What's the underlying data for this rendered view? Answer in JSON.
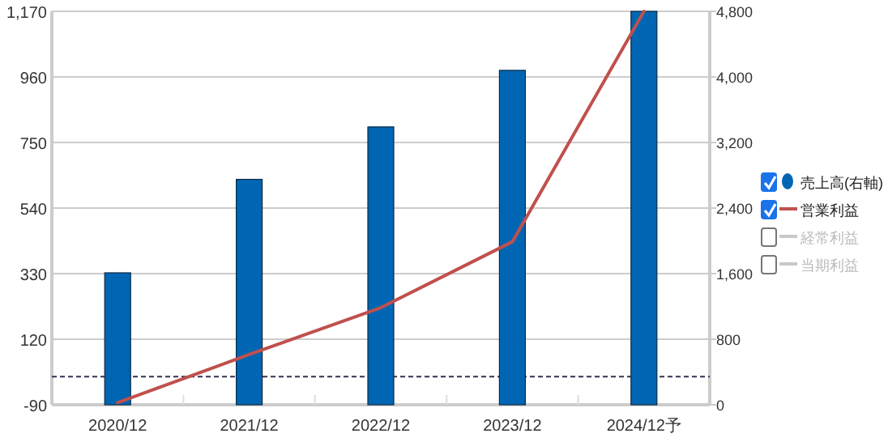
{
  "chart_data": {
    "type": "bar",
    "categories": [
      "2020/12",
      "2021/12",
      "2022/12",
      "2023/12",
      "2024/12予"
    ],
    "series": [
      {
        "name": "売上高(右軸)",
        "axis": "y2",
        "color": "#0066b3",
        "values": [
          1610,
          2750,
          3390,
          4080,
          4800
        ]
      },
      {
        "name": "営業利益",
        "type": "line",
        "color": "#c0504d",
        "values": [
          -83,
          71,
          221,
          432,
          1170
        ]
      },
      {
        "name": "経常利益",
        "type": "line",
        "color": "#c8c8c8",
        "values": [
          null,
          null,
          null,
          null,
          null
        ]
      },
      {
        "name": "当期利益",
        "type": "line",
        "color": "#c8c8c8",
        "values": [
          null,
          null,
          null,
          null,
          null
        ]
      }
    ],
    "ylim": [
      -90,
      1170
    ],
    "yticks": [
      -90,
      120,
      330,
      540,
      750,
      960,
      {
        "value": 1170,
        "label": "1,170"
      }
    ],
    "y2lim": [
      0,
      4800
    ],
    "y2ticks": [
      0,
      800,
      {
        "value": 1600,
        "label": "1,600"
      },
      {
        "value": 2400,
        "label": "2,400"
      },
      {
        "value": 3200,
        "label": "3,200"
      },
      {
        "value": 4000,
        "label": "4,000"
      },
      {
        "value": 4800,
        "label": "4,800"
      }
    ],
    "ref_lines": [
      {
        "axis": "y",
        "value": 0,
        "color": "#333355",
        "line_style": "dashed"
      }
    ],
    "grid": "y",
    "legend": "right"
  }
}
